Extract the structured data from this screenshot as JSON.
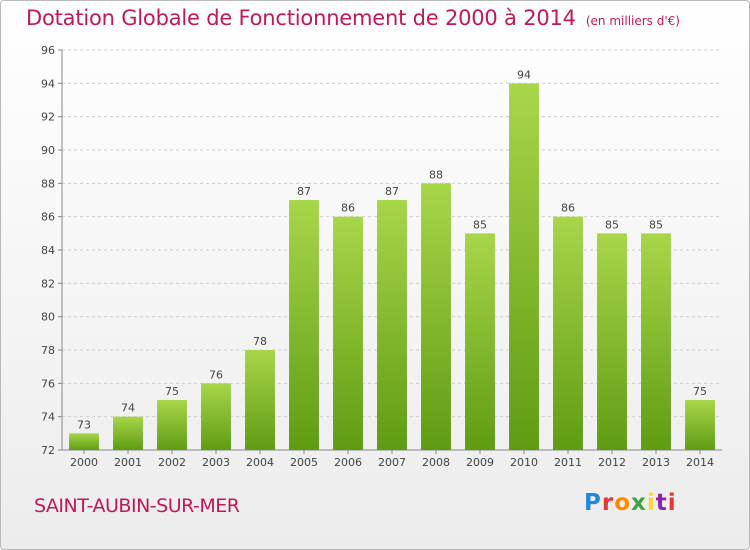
{
  "header": {
    "title": "Dotation Globale de Fonctionnement de 2000 à 2014",
    "subtitle": "(en milliers d'€)"
  },
  "commune": "SAINT-AUBIN-SUR-MER",
  "logo": {
    "text": "Proxiti",
    "colors": [
      "#1e88e5",
      "#e53935",
      "#fb8c00",
      "#43a047",
      "#fdd835",
      "#8e24aa",
      "#e53935"
    ]
  },
  "colors": {
    "title": "#c2185b",
    "bar_light": "#a8d64a",
    "bar_dark": "#5f9c12",
    "grid": "#cfcfcf",
    "axis_text": "#444444"
  },
  "chart_data": {
    "type": "bar",
    "categories": [
      "2000",
      "2001",
      "2002",
      "2003",
      "2004",
      "2005",
      "2006",
      "2007",
      "2008",
      "2009",
      "2010",
      "2011",
      "2012",
      "2013",
      "2014"
    ],
    "values": [
      73,
      74,
      75,
      76,
      78,
      87,
      86,
      87,
      88,
      85,
      94,
      86,
      85,
      85,
      75
    ],
    "title": "Dotation Globale de Fonctionnement de 2000 à 2014",
    "xlabel": "",
    "ylabel": "",
    "ylim": [
      72,
      96
    ],
    "yticks": [
      72,
      74,
      76,
      78,
      80,
      82,
      84,
      86,
      88,
      90,
      92,
      94,
      96
    ],
    "grid": true,
    "data_labels": true
  }
}
